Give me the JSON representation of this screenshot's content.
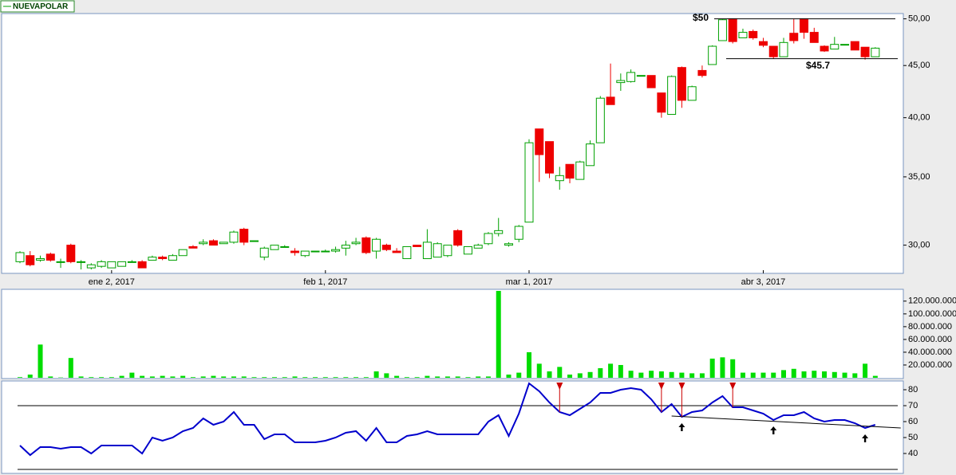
{
  "legend": "NUEVAPOLAR",
  "chart_data": [
    {
      "type": "candlestick",
      "categories": [
        null,
        null,
        null,
        null,
        null,
        null,
        null,
        null,
        null,
        "ene 2, 2017",
        null,
        null,
        null,
        null,
        null,
        null,
        null,
        null,
        null,
        null,
        null,
        null,
        null,
        null,
        null,
        null,
        null,
        null,
        null,
        null,
        "feb 1, 2017",
        null,
        null,
        null,
        null,
        null,
        null,
        null,
        null,
        null,
        null,
        null,
        null,
        null,
        null,
        null,
        null,
        null,
        null,
        null,
        "mar 1, 2017",
        null,
        null,
        null,
        null,
        null,
        null,
        null,
        null,
        null,
        null,
        null,
        null,
        null,
        null,
        null,
        null,
        null,
        null,
        null,
        null,
        null,
        null,
        "abr 3, 2017",
        null,
        null,
        null,
        null,
        null,
        null,
        null,
        null,
        null,
        null,
        null
      ],
      "open": [
        28.9,
        29.3,
        29.0,
        29.4,
        28.9,
        30.0,
        28.9,
        28.5,
        28.6,
        28.5,
        28.6,
        28.9,
        28.9,
        29.0,
        29.2,
        29.0,
        29.3,
        29.9,
        30.1,
        30.3,
        30.1,
        30.2,
        31.1,
        30.3,
        29.2,
        29.7,
        29.9,
        29.6,
        29.3,
        29.6,
        29.6,
        29.6,
        29.8,
        30.1,
        30.5,
        29.6,
        30.0,
        29.6,
        29.1,
        30.0,
        29.1,
        29.2,
        29.3,
        31.0,
        29.4,
        29.8,
        30.1,
        30.8,
        30.0,
        30.4,
        31.6,
        39.0,
        37.9,
        34.7,
        36.0,
        34.8,
        35.9,
        37.8,
        41.9,
        43.3,
        43.4,
        44.0,
        44.0,
        42.3,
        40.3,
        44.8,
        41.6,
        44.5,
        45.1,
        47.6,
        50.0,
        47.9,
        48.6,
        47.5,
        47.0,
        45.9,
        48.4,
        50.0,
        48.5,
        47.0,
        46.7,
        47.2,
        47.5,
        46.9,
        45.9
      ],
      "high": [
        29.6,
        29.6,
        29.3,
        29.5,
        29.1,
        30.1,
        29.0,
        28.8,
        29.0,
        28.9,
        28.9,
        29.0,
        29.0,
        29.3,
        29.3,
        29.4,
        29.7,
        30.0,
        30.4,
        30.4,
        30.2,
        31.0,
        31.2,
        30.3,
        29.9,
        30.0,
        30.0,
        29.8,
        29.6,
        29.6,
        29.7,
        29.9,
        30.3,
        30.5,
        30.6,
        30.5,
        30.1,
        29.8,
        29.9,
        30.0,
        31.1,
        30.2,
        30.0,
        31.1,
        29.9,
        30.1,
        30.9,
        31.9,
        30.2,
        31.4,
        38.1,
        39.0,
        37.9,
        35.8,
        36.0,
        36.3,
        38.0,
        42.0,
        45.2,
        44.2,
        44.6,
        44.0,
        44.0,
        42.3,
        44.0,
        44.9,
        43.0,
        45.0,
        47.1,
        50.0,
        50.0,
        48.9,
        48.8,
        47.9,
        47.0,
        47.9,
        50.0,
        50.0,
        49.0,
        47.1,
        48.0,
        47.2,
        47.5,
        46.9,
        46.9
      ],
      "low": [
        28.8,
        28.6,
        28.9,
        28.9,
        28.5,
        28.8,
        28.4,
        28.4,
        28.5,
        28.5,
        28.6,
        28.9,
        28.5,
        29.0,
        29.0,
        29.0,
        29.3,
        29.8,
        30.0,
        30.0,
        30.1,
        30.1,
        30.0,
        30.3,
        29.0,
        29.7,
        29.9,
        29.3,
        29.2,
        29.6,
        29.6,
        29.5,
        29.3,
        30.0,
        29.4,
        29.1,
        29.6,
        29.5,
        29.1,
        29.9,
        29.1,
        29.2,
        29.2,
        29.9,
        29.4,
        29.8,
        30.0,
        30.6,
        29.9,
        30.2,
        31.6,
        34.6,
        34.9,
        34.0,
        34.5,
        34.8,
        35.9,
        37.8,
        41.2,
        42.5,
        43.3,
        44.0,
        42.8,
        40.0,
        40.3,
        40.9,
        41.6,
        43.8,
        45.1,
        47.6,
        47.3,
        47.9,
        47.7,
        46.9,
        45.7,
        45.9,
        47.3,
        47.8,
        47.4,
        46.4,
        46.7,
        47.2,
        46.6,
        45.6,
        45.9
      ],
      "close": [
        29.5,
        28.7,
        29.1,
        29.0,
        28.9,
        28.9,
        28.9,
        28.7,
        28.9,
        28.9,
        28.9,
        28.9,
        28.5,
        29.2,
        29.1,
        29.3,
        29.7,
        29.8,
        30.2,
        30.0,
        30.2,
        30.9,
        30.2,
        30.3,
        29.8,
        30.0,
        29.9,
        29.5,
        29.6,
        29.6,
        29.6,
        29.7,
        30.0,
        30.2,
        29.5,
        30.4,
        29.7,
        29.5,
        29.9,
        29.9,
        30.2,
        30.1,
        30.0,
        30.0,
        29.9,
        30.0,
        30.8,
        31.0,
        30.1,
        31.3,
        37.8,
        36.8,
        35.3,
        35.1,
        34.9,
        36.2,
        37.7,
        41.8,
        41.2,
        43.5,
        44.3,
        44.0,
        42.8,
        40.5,
        43.9,
        41.6,
        42.9,
        44.0,
        47.0,
        49.9,
        47.5,
        48.5,
        47.9,
        47.1,
        45.9,
        47.4,
        47.6,
        48.5,
        47.4,
        46.5,
        47.2,
        47.2,
        46.6,
        45.9,
        46.8
      ],
      "up_color": "#00a000",
      "down_color": "#ee0000",
      "log_scale": true,
      "ylim": [
        28.2,
        50.6
      ],
      "yticks": [
        {
          "value": 30,
          "label": "30,00"
        },
        {
          "value": 35,
          "label": "35,00"
        },
        {
          "value": 40,
          "label": "40,00"
        },
        {
          "value": 45,
          "label": "45,00"
        },
        {
          "value": 50,
          "label": "50,00"
        }
      ],
      "annotations": [
        {
          "label": "$50",
          "value": 50
        },
        {
          "label": "$45.7",
          "value": 45.7
        }
      ]
    },
    {
      "type": "bar",
      "values": [
        1000000,
        5000000,
        52000000,
        2000000,
        500000,
        31000000,
        2000000,
        1000000,
        1000000,
        1000000,
        3000000,
        8000000,
        3000000,
        2000000,
        3000000,
        2000000,
        3000000,
        1000000,
        2000000,
        3000000,
        2000000,
        2000000,
        2000000,
        1000000,
        1000000,
        1000000,
        1000000,
        2000000,
        1000000,
        1000000,
        1000000,
        1000000,
        1000000,
        1000000,
        1000000,
        10000000,
        7000000,
        3000000,
        1000000,
        1000000,
        3000000,
        2000000,
        2000000,
        2000000,
        1000000,
        2000000,
        2000000,
        136000000,
        5000000,
        8000000,
        40000000,
        22000000,
        10000000,
        17000000,
        5000000,
        7000000,
        9000000,
        15000000,
        22000000,
        20000000,
        11000000,
        8000000,
        11000000,
        10000000,
        9000000,
        8000000,
        7000000,
        7000000,
        30000000,
        32000000,
        29000000,
        8000000,
        8000000,
        8000000,
        8000000,
        12000000,
        14000000,
        10000000,
        11000000,
        10000000,
        9000000,
        8000000,
        7000000,
        22000000,
        3000000
      ],
      "color": "#00dd00",
      "ylim": [
        0,
        136000000
      ],
      "yticks": [
        {
          "value": 20000000,
          "label": "20.000.000"
        },
        {
          "value": 40000000,
          "label": "40.000.000"
        },
        {
          "value": 60000000,
          "label": "60.000.000"
        },
        {
          "value": 80000000,
          "label": "80.000.000"
        },
        {
          "value": 100000000,
          "label": "100.000.000"
        },
        {
          "value": 120000000,
          "label": "120.000.000"
        }
      ]
    },
    {
      "type": "line",
      "values": [
        45,
        39,
        44,
        44,
        43,
        44,
        44,
        40,
        45,
        45,
        45,
        45,
        40,
        50,
        48,
        50,
        54,
        56,
        62,
        58,
        60,
        66,
        58,
        58,
        49,
        52,
        52,
        47,
        47,
        47,
        48,
        50,
        53,
        54,
        48,
        56,
        47,
        47,
        51,
        52,
        54,
        52,
        52,
        52,
        52,
        52,
        60,
        64,
        51,
        65,
        84,
        79,
        72,
        66,
        64,
        68,
        72,
        78,
        78,
        80,
        81,
        80,
        74,
        66,
        71,
        63,
        66,
        67,
        72,
        76,
        69,
        69,
        67,
        65,
        61,
        64,
        64,
        66,
        62,
        60,
        61,
        61,
        59,
        56,
        58
      ],
      "color": "#0000cc",
      "ylim": [
        28,
        84.5
      ],
      "yticks": [
        40,
        50,
        60,
        70,
        80
      ],
      "hlines": [
        70,
        30
      ],
      "sell_signals": [
        53,
        63,
        65,
        70
      ],
      "buy_signals": [
        65,
        74,
        83
      ],
      "trendline": {
        "x": [
          64,
          86.5
        ],
        "y": [
          63.5,
          56
        ]
      }
    }
  ]
}
